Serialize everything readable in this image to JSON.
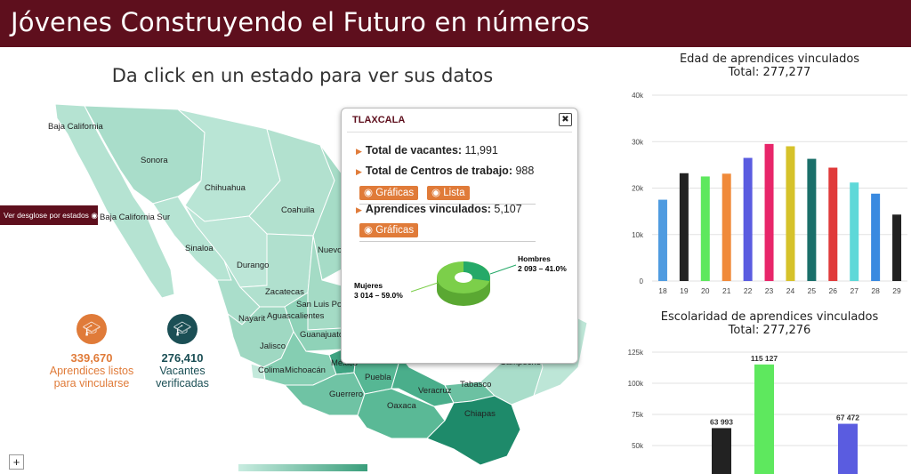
{
  "header": {
    "title": "Jóvenes Construyendo el Futuro en números"
  },
  "map": {
    "instruction": "Da click en un estado para ver sus datos",
    "desglose_button": "Ver desglose por estados",
    "state_labels": [
      "Baja California",
      "Sonora",
      "Chihuahua",
      "Baja California Sur",
      "Coahuila",
      "Sinaloa",
      "Nuevo",
      "Durango",
      "Zacatecas",
      "San Luis Pot",
      "Nayarit",
      "Aguascalientes",
      "Guanajuato",
      "Jalisco",
      "Colima",
      "Michoacán",
      "México",
      "Puebla",
      "Guerrero",
      "Veracruz",
      "Tabasco",
      "Campeche",
      "Oaxaca",
      "Chiapas"
    ],
    "zoom_in": "+"
  },
  "stats": {
    "aprendices": {
      "value": "339,670",
      "label_line1": "Aprendices listos",
      "label_line2": "para vincularse",
      "icon": "graduate-icon",
      "color": "#e07b39"
    },
    "vacantes": {
      "value": "276,410",
      "label_line1": "Vacantes",
      "label_line2": "verificadas",
      "icon": "graduate-icon",
      "color": "#1b4f55"
    }
  },
  "popup": {
    "title": "TLAXCALA",
    "close_label": "✖",
    "vacantes_label": "Total de vacantes:",
    "vacantes_value": "11,991",
    "centros_label": "Total de Centros de trabajo:",
    "centros_value": "988",
    "graficas_label": "Gráficas",
    "lista_label": "Lista",
    "aprendices_label": "Aprendices vinculados:",
    "aprendices_value": "5,107",
    "graficas2_label": "Gráficas",
    "pie": {
      "hombres_label": "Hombres",
      "hombres_value": "2 093 – 41.0%",
      "mujeres_label": "Mujeres",
      "mujeres_value": "3 014 – 59.0%"
    }
  },
  "charts": {
    "edad": {
      "title": "Edad de aprendices vinculados",
      "total": "Total: 277,277"
    },
    "escolaridad": {
      "title": "Escolaridad de aprendices vinculados",
      "total": "Total: 277,276"
    }
  },
  "colors": {
    "header": "#5e0f1d",
    "accent": "#e07b39",
    "map_low": "#c8ece0",
    "map_high": "#1e8a6a"
  },
  "chart_data": [
    {
      "type": "bar",
      "title": "Edad de aprendices vinculados",
      "subtitle": "Total: 277,277",
      "categories": [
        "18",
        "19",
        "20",
        "21",
        "22",
        "23",
        "24",
        "25",
        "26",
        "27",
        "28",
        "29"
      ],
      "values": [
        17500,
        23200,
        22500,
        23100,
        26500,
        29500,
        29000,
        26300,
        24400,
        21200,
        18800,
        14300
      ],
      "colors": [
        "#4f9be0",
        "#222222",
        "#5ee85e",
        "#f08a3a",
        "#5a5ce0",
        "#e8266a",
        "#d6c22a",
        "#1a6f6a",
        "#e03a3a",
        "#5ed8d8",
        "#3a8ae0",
        "#222222"
      ],
      "yticks": [
        "0",
        "10k",
        "20k",
        "30k",
        "40k"
      ],
      "ylim": [
        0,
        40000
      ],
      "grid": true
    },
    {
      "type": "bar",
      "title": "Escolaridad de aprendices vinculados",
      "subtitle": "Total: 277,276",
      "values": [
        63993,
        115127,
        67472
      ],
      "data_labels": [
        "63 993",
        "115 127",
        "67 472"
      ],
      "colors": [
        "#222222",
        "#5ee85e",
        "#5a5ce0"
      ],
      "yticks": [
        "50k",
        "75k",
        "100k",
        "125k"
      ],
      "grid": true
    }
  ]
}
